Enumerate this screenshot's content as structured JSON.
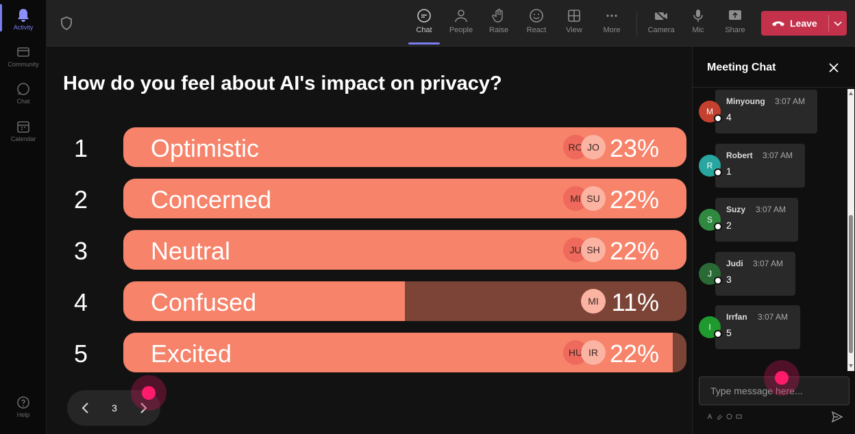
{
  "rail": {
    "items": [
      {
        "label": "Activity",
        "icon": "bell-icon"
      },
      {
        "label": "Community",
        "icon": "community-icon"
      },
      {
        "label": "Chat",
        "icon": "chat-icon"
      },
      {
        "label": "Calendar",
        "icon": "calendar-icon"
      },
      {
        "label": "Help",
        "icon": "help-icon"
      }
    ]
  },
  "toolbar": {
    "chat": "Chat",
    "people": "People",
    "raise": "Raise",
    "react": "React",
    "view": "View",
    "more": "More",
    "camera": "Camera",
    "mic": "Mic",
    "share": "Share",
    "leave": "Leave"
  },
  "poll": {
    "question": "How do you feel about AI's impact on privacy?",
    "options": [
      {
        "num": "1",
        "label": "Optimistic",
        "pct": "23%",
        "fill": 1.0,
        "avatars": [
          "RO",
          "JO"
        ]
      },
      {
        "num": "2",
        "label": "Concerned",
        "pct": "22%",
        "fill": 1.0,
        "avatars": [
          "MI",
          "SU"
        ]
      },
      {
        "num": "3",
        "label": "Neutral",
        "pct": "22%",
        "fill": 1.0,
        "avatars": [
          "JU",
          "SH"
        ]
      },
      {
        "num": "4",
        "label": "Confused",
        "pct": "11%",
        "fill": 0.5,
        "avatars": [
          "MI"
        ]
      },
      {
        "num": "5",
        "label": "Excited",
        "pct": "22%",
        "fill": 0.976,
        "avatars": [
          "HU",
          "IR"
        ]
      }
    ]
  },
  "pager": {
    "page": "3"
  },
  "chat": {
    "title": "Meeting Chat",
    "messages": [
      {
        "initial": "M",
        "name": "Minyoung",
        "time": "3:07 AM",
        "text": "4",
        "color": "#c4402f"
      },
      {
        "initial": "R",
        "name": "Robert",
        "time": "3:07 AM",
        "text": "1",
        "color": "#2aa6a0"
      },
      {
        "initial": "S",
        "name": "Suzy",
        "time": "3:07 AM",
        "text": "2",
        "color": "#2f8a3f"
      },
      {
        "initial": "J",
        "name": "Judi",
        "time": "3:07 AM",
        "text": "3",
        "color": "#2a6a35"
      },
      {
        "initial": "I",
        "name": "Irrfan",
        "time": "3:07 AM",
        "text": "5",
        "color": "#1f9a2f"
      }
    ],
    "placeholder": "Type message here..."
  },
  "colors": {
    "accent": "#7a7df0",
    "bar_fill": "#f6836a",
    "bar_track": "#7c4436",
    "leave": "#c4314b"
  }
}
